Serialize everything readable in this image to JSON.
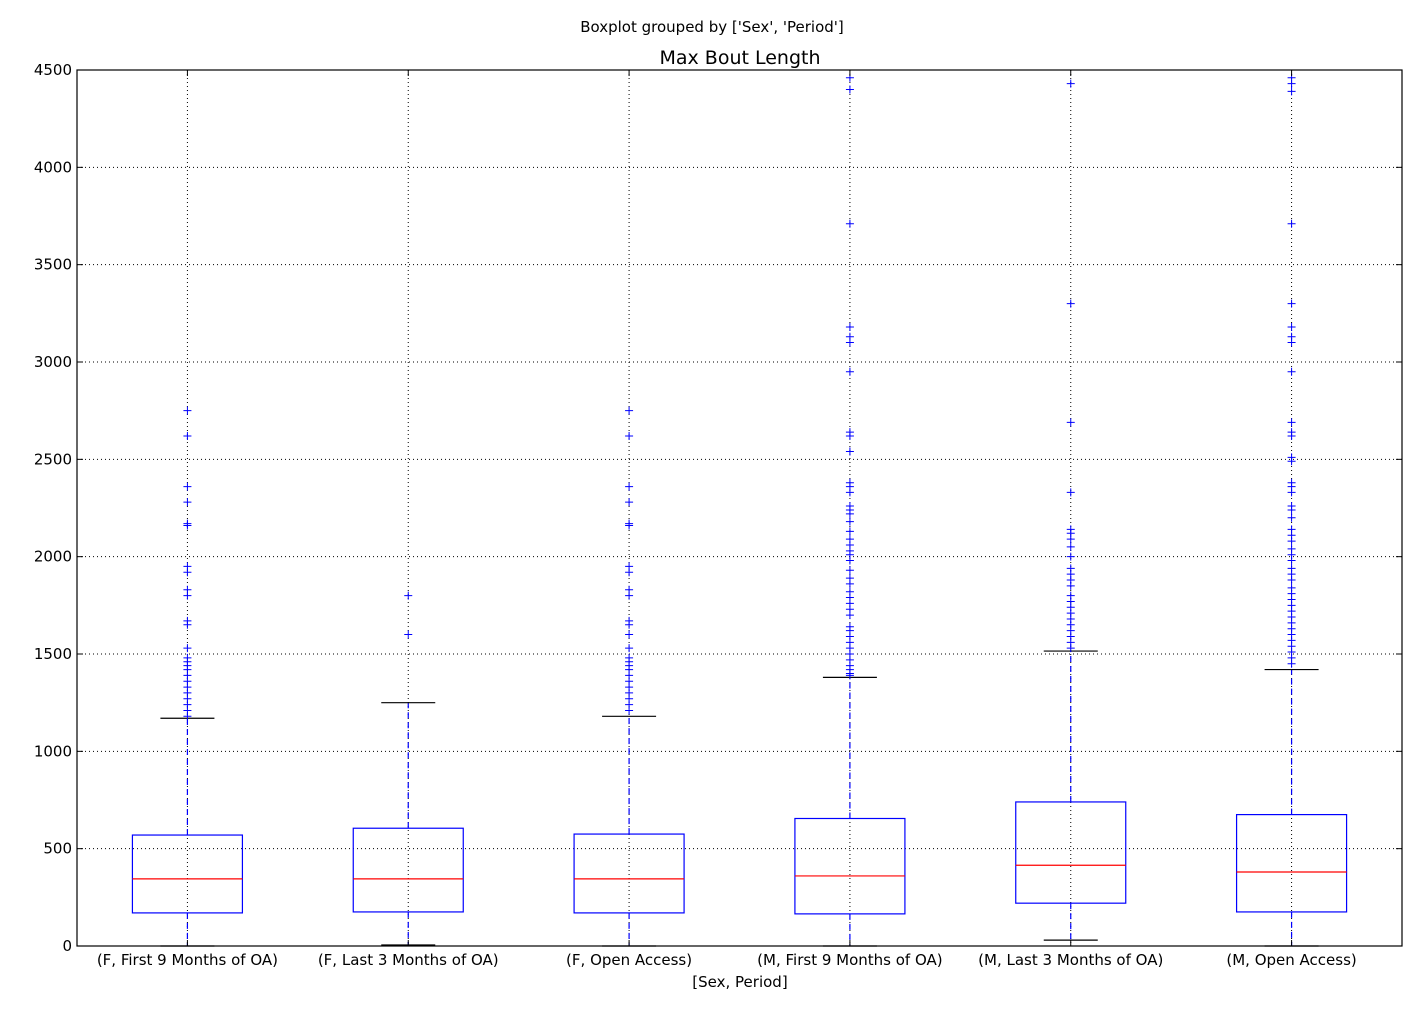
{
  "chart_data": {
    "type": "box",
    "suptitle": "Boxplot grouped by ['Sex', 'Period']",
    "title": "Max Bout Length",
    "xlabel": "[Sex, Period]",
    "ylabel": "",
    "ylim": [
      0,
      4500
    ],
    "yticks": [
      0,
      500,
      1000,
      1500,
      2000,
      2500,
      3000,
      3500,
      4000,
      4500
    ],
    "grid": true,
    "colors": {
      "box": "#0000ff",
      "median": "#ff0000",
      "whisker": "#0000ff",
      "cap": "#000000",
      "flier": "#0000ff",
      "grid": "#000000"
    },
    "categories": [
      "(F, First 9 Months of OA)",
      "(F, Last 3 Months of OA)",
      "(F, Open Access)",
      "(M, First 9 Months of OA)",
      "(M, Last 3 Months of OA)",
      "(M, Open Access)"
    ],
    "boxes": [
      {
        "whislo": 0,
        "q1": 170,
        "med": 345,
        "q3": 570,
        "whishi": 1170,
        "fliers": [
          1180,
          1210,
          1240,
          1270,
          1300,
          1330,
          1360,
          1390,
          1420,
          1440,
          1460,
          1480,
          1530,
          1650,
          1670,
          1800,
          1830,
          1920,
          1950,
          2160,
          2170,
          2280,
          2360,
          2620,
          2750
        ]
      },
      {
        "whislo": 5,
        "q1": 175,
        "med": 345,
        "q3": 605,
        "whishi": 1250,
        "fliers": [
          1600,
          1800
        ]
      },
      {
        "whislo": 0,
        "q1": 170,
        "med": 345,
        "q3": 575,
        "whishi": 1180,
        "fliers": [
          1210,
          1240,
          1270,
          1300,
          1330,
          1360,
          1390,
          1420,
          1440,
          1460,
          1480,
          1530,
          1600,
          1650,
          1670,
          1800,
          1830,
          1920,
          1950,
          2160,
          2170,
          2280,
          2360,
          2620,
          2750
        ]
      },
      {
        "whislo": 0,
        "q1": 165,
        "med": 360,
        "q3": 655,
        "whishi": 1380,
        "fliers": [
          1390,
          1400,
          1420,
          1440,
          1470,
          1500,
          1530,
          1560,
          1590,
          1620,
          1640,
          1700,
          1730,
          1760,
          1790,
          1820,
          1860,
          1890,
          1930,
          1980,
          2010,
          2030,
          2060,
          2090,
          2130,
          2180,
          2220,
          2240,
          2260,
          2330,
          2360,
          2380,
          2540,
          2620,
          2640,
          2950,
          3100,
          3130,
          3180,
          3710,
          4400,
          4460
        ]
      },
      {
        "whislo": 30,
        "q1": 220,
        "med": 415,
        "q3": 740,
        "whishi": 1515,
        "fliers": [
          1530,
          1560,
          1590,
          1620,
          1650,
          1680,
          1710,
          1740,
          1770,
          1800,
          1850,
          1880,
          1910,
          1940,
          2000,
          2050,
          2090,
          2120,
          2140,
          2330,
          2690,
          3300,
          4430
        ]
      },
      {
        "whislo": 0,
        "q1": 175,
        "med": 380,
        "q3": 675,
        "whishi": 1420,
        "fliers": [
          1450,
          1480,
          1510,
          1540,
          1570,
          1600,
          1630,
          1660,
          1690,
          1720,
          1750,
          1780,
          1810,
          1840,
          1880,
          1910,
          1940,
          1980,
          2010,
          2040,
          2080,
          2110,
          2140,
          2200,
          2240,
          2260,
          2330,
          2360,
          2380,
          2490,
          2510,
          2620,
          2640,
          2690,
          2950,
          3100,
          3130,
          3180,
          3300,
          3710,
          4390,
          4430,
          4460
        ]
      }
    ]
  }
}
